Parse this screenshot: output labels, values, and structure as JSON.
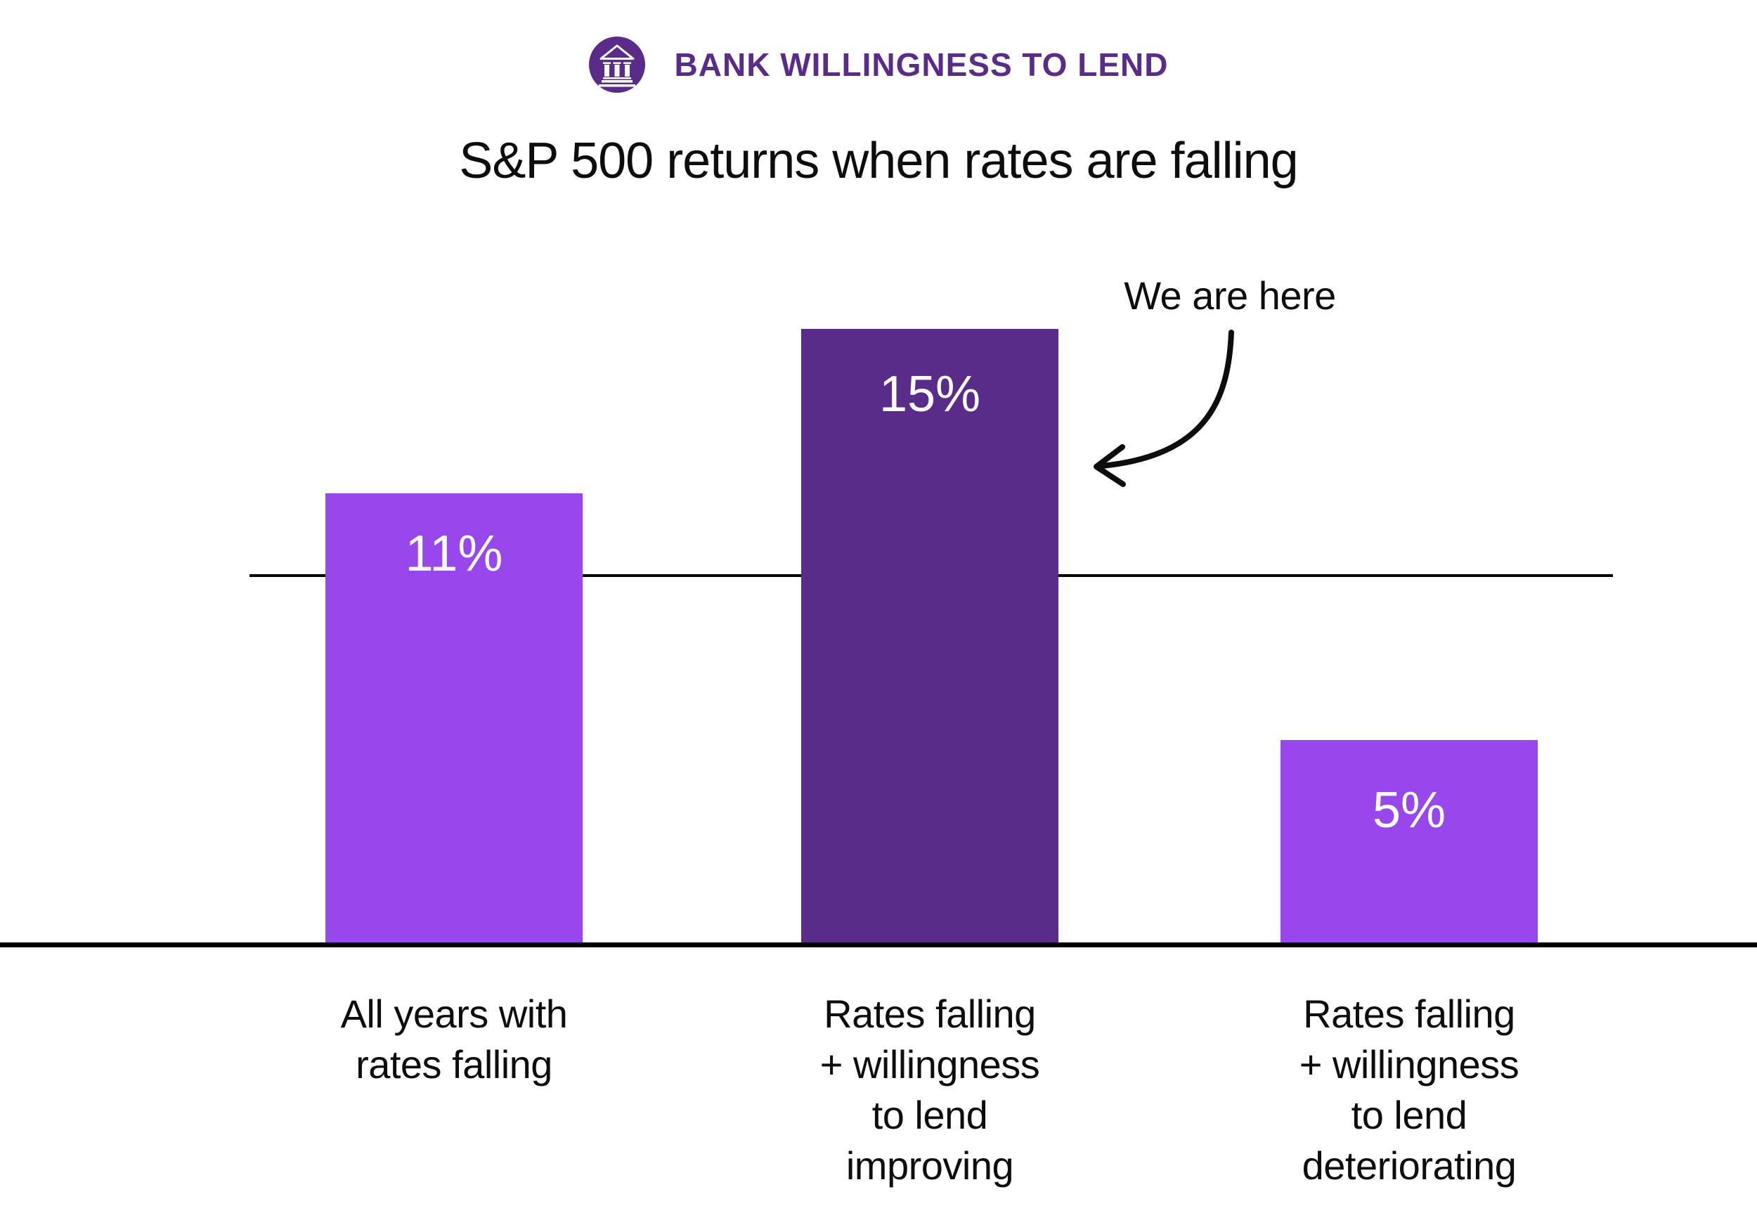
{
  "header": {
    "brand_label": "BANK WILLINGNESS TO LEND",
    "icon": "bank-building-icon",
    "brand_color": "#5B2B8A"
  },
  "chart_data": {
    "type": "bar",
    "title": "S&P 500 returns when rates are falling",
    "categories": [
      "All years with rates falling",
      "Rates falling + willingness to lend improving",
      "Rates falling + willingness to lend deteriorating"
    ],
    "category_label_lines": [
      [
        "All years with",
        "rates falling"
      ],
      [
        "Rates falling",
        "+ willingness",
        "to lend",
        "improving"
      ],
      [
        "Rates falling",
        "+ willingness",
        "to lend",
        "deteriorating"
      ]
    ],
    "values": [
      11,
      15,
      5
    ],
    "value_labels": [
      "11%",
      "15%",
      "5%"
    ],
    "unit": "percent",
    "ylim": [
      0,
      16
    ],
    "bar_colors": [
      "#9747EC",
      "#582C88",
      "#9747EC"
    ],
    "value_label_color": "#FFFFFF",
    "axis_color": "#000000",
    "baseline_value": 0,
    "reference_line": {
      "approx_value": 9,
      "label": ""
    },
    "grid": false,
    "legend": false,
    "annotation": {
      "text": "We are here",
      "points_to": "Rates falling + willingness to lend improving"
    }
  }
}
